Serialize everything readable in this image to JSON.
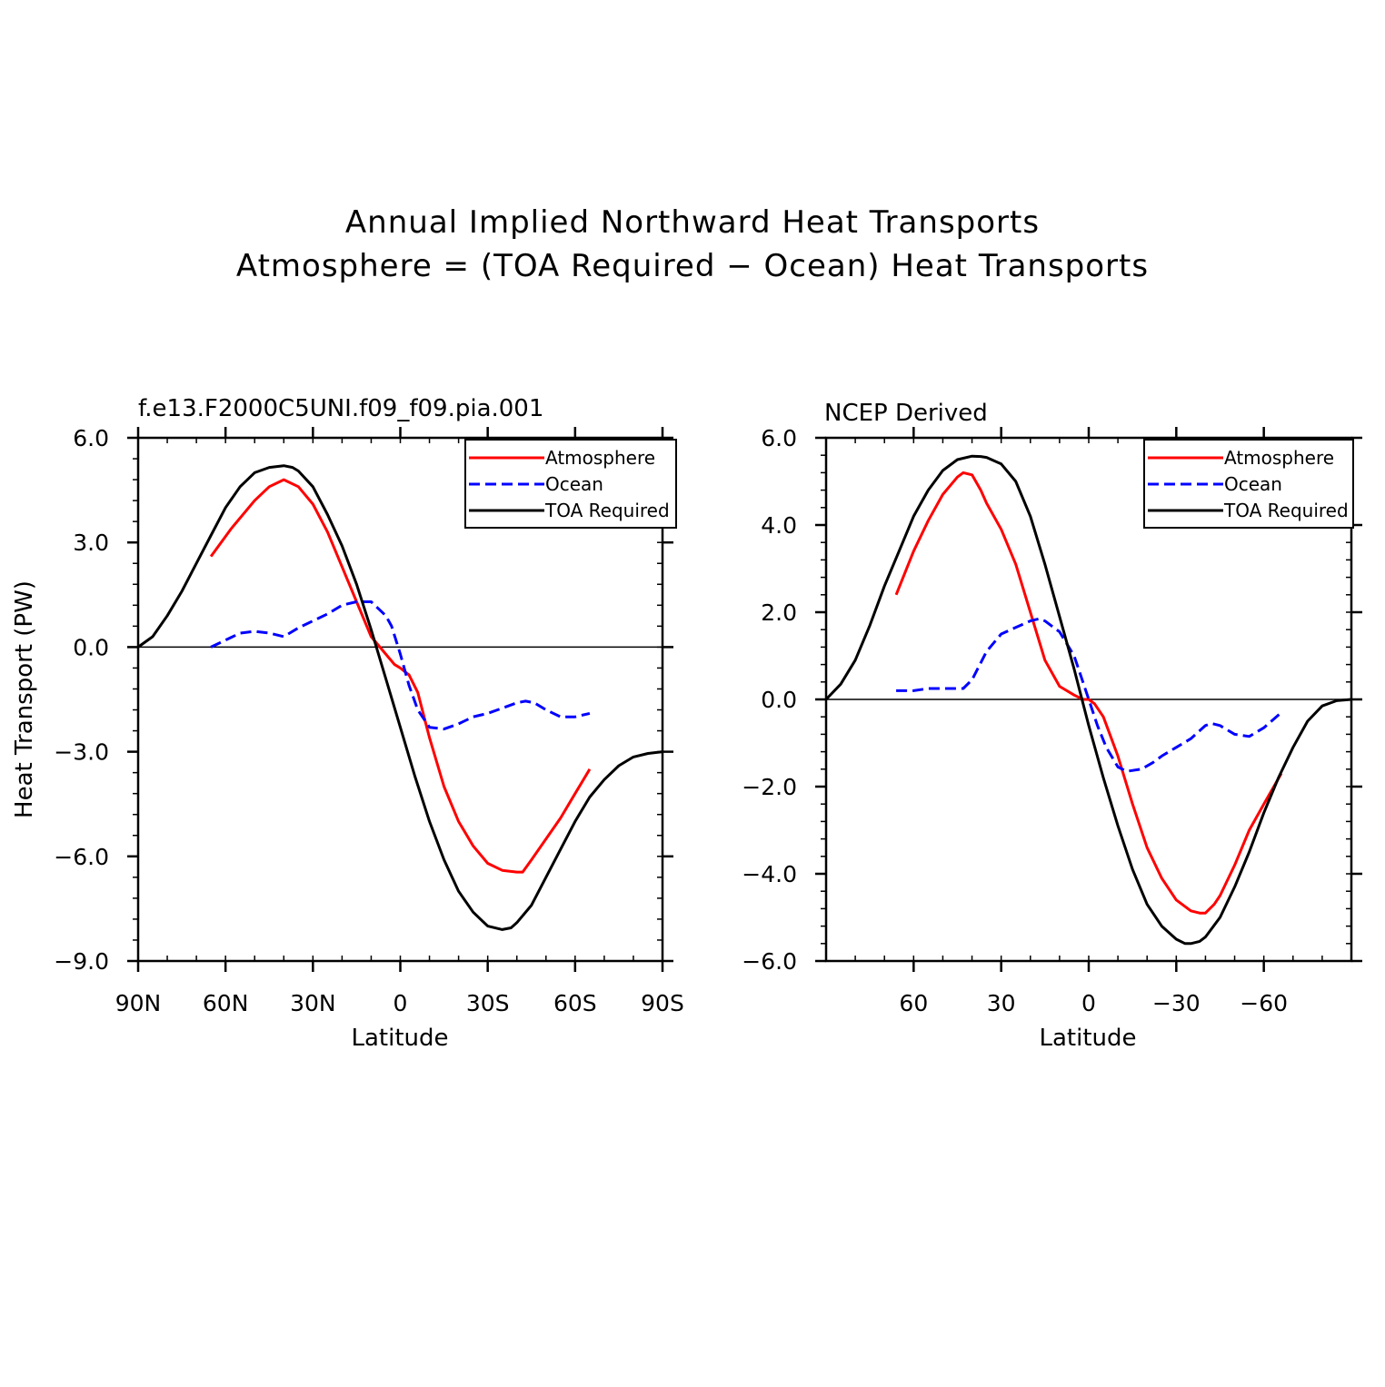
{
  "figure": {
    "title_line1": "Annual Implied Northward Heat Transports",
    "title_line2": "Atmosphere = (TOA Required − Ocean) Heat Transports"
  },
  "chart_data": [
    {
      "type": "line",
      "title": "f.e13.F2000C5UNI.f09_f09.pia.001",
      "xlabel": "Latitude",
      "ylabel": "Heat Transport (PW)",
      "xlim": [
        90,
        -90
      ],
      "ylim": [
        -9,
        6
      ],
      "xticks": [
        90,
        60,
        30,
        0,
        -30,
        -60,
        -90
      ],
      "xtick_labels": [
        "90N",
        "60N",
        "30N",
        "0",
        "30S",
        "60S",
        "90S"
      ],
      "yticks": [
        6,
        3,
        0,
        -3,
        -6,
        -9
      ],
      "ytick_labels": [
        "6.0",
        "3.0",
        "0.0",
        "−3.0",
        "−6.0",
        "−9.0"
      ],
      "legend_position": "top-right",
      "series": [
        {
          "name": "Atmosphere",
          "color": "#ff0000",
          "dash": "solid",
          "x": [
            65,
            58,
            50,
            45,
            40,
            35,
            30,
            25,
            20,
            15,
            10,
            5,
            2,
            0,
            -3,
            -6,
            -10,
            -15,
            -20,
            -25,
            -30,
            -35,
            -40,
            -42,
            -45,
            -50,
            -55,
            -60,
            -65
          ],
          "y": [
            2.6,
            3.4,
            4.2,
            4.6,
            4.8,
            4.6,
            4.1,
            3.3,
            2.3,
            1.3,
            0.3,
            -0.2,
            -0.5,
            -0.6,
            -0.8,
            -1.3,
            -2.6,
            -4.0,
            -5.0,
            -5.7,
            -6.2,
            -6.4,
            -6.45,
            -6.45,
            -6.1,
            -5.5,
            -4.9,
            -4.2,
            -3.5
          ]
        },
        {
          "name": "Ocean",
          "color": "#0000ff",
          "dash": "dashed",
          "x": [
            65,
            60,
            55,
            50,
            45,
            40,
            35,
            30,
            25,
            20,
            15,
            10,
            5,
            3,
            0,
            -3,
            -6,
            -10,
            -15,
            -20,
            -25,
            -30,
            -35,
            -40,
            -43,
            -46,
            -50,
            -55,
            -60,
            -65
          ],
          "y": [
            0.0,
            0.2,
            0.4,
            0.45,
            0.4,
            0.3,
            0.55,
            0.75,
            0.95,
            1.2,
            1.3,
            1.3,
            0.9,
            0.6,
            -0.2,
            -1.1,
            -1.8,
            -2.3,
            -2.35,
            -2.2,
            -2.0,
            -1.9,
            -1.75,
            -1.6,
            -1.55,
            -1.6,
            -1.8,
            -2.0,
            -2.0,
            -1.9
          ]
        },
        {
          "name": "TOA Required",
          "color": "#000000",
          "dash": "solid",
          "x": [
            90,
            85,
            80,
            75,
            70,
            65,
            60,
            55,
            50,
            45,
            40,
            37,
            35,
            30,
            25,
            20,
            15,
            10,
            5,
            0,
            -5,
            -10,
            -15,
            -20,
            -25,
            -30,
            -35,
            -38,
            -40,
            -45,
            -50,
            -55,
            -60,
            -65,
            -70,
            -75,
            -80,
            -85,
            -90
          ],
          "y": [
            0.0,
            0.3,
            0.9,
            1.6,
            2.4,
            3.2,
            4.0,
            4.6,
            5.0,
            5.15,
            5.2,
            5.15,
            5.05,
            4.6,
            3.8,
            2.9,
            1.8,
            0.5,
            -0.9,
            -2.3,
            -3.7,
            -5.0,
            -6.1,
            -7.0,
            -7.6,
            -8.0,
            -8.1,
            -8.05,
            -7.9,
            -7.4,
            -6.6,
            -5.8,
            -5.0,
            -4.3,
            -3.8,
            -3.4,
            -3.15,
            -3.05,
            -3.0
          ]
        }
      ]
    },
    {
      "type": "line",
      "title": "NCEP Derived",
      "xlabel": "Latitude",
      "ylabel": "",
      "xlim": [
        90,
        -90
      ],
      "ylim": [
        -6,
        6
      ],
      "xticks": [
        60,
        30,
        0,
        -30,
        -60
      ],
      "xtick_labels": [
        "60",
        "30",
        "0",
        "−30",
        "−60"
      ],
      "yticks": [
        6,
        4,
        2,
        0,
        -2,
        -4,
        -6
      ],
      "ytick_labels": [
        "6.0",
        "4.0",
        "2.0",
        "0.0",
        "−2.0",
        "−4.0",
        "−6.0"
      ],
      "legend_position": "top-right",
      "series": [
        {
          "name": "Atmosphere",
          "color": "#ff0000",
          "dash": "solid",
          "x": [
            66,
            60,
            55,
            50,
            45,
            43,
            40,
            37,
            35,
            30,
            25,
            20,
            15,
            10,
            5,
            2,
            0,
            -2,
            -5,
            -10,
            -15,
            -20,
            -25,
            -30,
            -35,
            -38,
            -40,
            -43,
            -45,
            -50,
            -55,
            -60,
            -66
          ],
          "y": [
            2.4,
            3.4,
            4.1,
            4.7,
            5.1,
            5.2,
            5.15,
            4.8,
            4.5,
            3.9,
            3.1,
            2.0,
            0.9,
            0.3,
            0.1,
            0.0,
            0.0,
            -0.1,
            -0.4,
            -1.3,
            -2.4,
            -3.4,
            -4.1,
            -4.6,
            -4.85,
            -4.9,
            -4.9,
            -4.7,
            -4.5,
            -3.8,
            -3.0,
            -2.4,
            -1.7
          ]
        },
        {
          "name": "Ocean",
          "color": "#0000ff",
          "dash": "dashed",
          "x": [
            66,
            60,
            55,
            50,
            45,
            43,
            40,
            35,
            30,
            25,
            20,
            17,
            15,
            10,
            5,
            2,
            0,
            -3,
            -6,
            -10,
            -13,
            -18,
            -22,
            -25,
            -30,
            -35,
            -40,
            -42,
            -45,
            -50,
            -55,
            -60,
            -66
          ],
          "y": [
            0.2,
            0.2,
            0.25,
            0.25,
            0.25,
            0.25,
            0.45,
            1.1,
            1.5,
            1.65,
            1.8,
            1.85,
            1.8,
            1.55,
            1.0,
            0.4,
            0.0,
            -0.6,
            -1.1,
            -1.55,
            -1.65,
            -1.6,
            -1.45,
            -1.3,
            -1.1,
            -0.9,
            -0.6,
            -0.55,
            -0.6,
            -0.8,
            -0.85,
            -0.65,
            -0.3
          ]
        },
        {
          "name": "TOA Required",
          "color": "#000000",
          "dash": "solid",
          "x": [
            90,
            85,
            80,
            75,
            70,
            65,
            60,
            55,
            50,
            45,
            40,
            37,
            35,
            30,
            25,
            20,
            15,
            10,
            5,
            0,
            -5,
            -10,
            -15,
            -20,
            -25,
            -30,
            -33,
            -35,
            -38,
            -40,
            -45,
            -50,
            -55,
            -60,
            -65,
            -70,
            -75,
            -80,
            -85,
            -90
          ],
          "y": [
            0.0,
            0.35,
            0.9,
            1.7,
            2.6,
            3.4,
            4.2,
            4.8,
            5.25,
            5.5,
            5.58,
            5.57,
            5.55,
            5.4,
            5.0,
            4.2,
            3.1,
            1.9,
            0.7,
            -0.6,
            -1.8,
            -2.9,
            -3.9,
            -4.7,
            -5.2,
            -5.5,
            -5.6,
            -5.6,
            -5.55,
            -5.45,
            -5.0,
            -4.3,
            -3.5,
            -2.6,
            -1.8,
            -1.1,
            -0.5,
            -0.15,
            -0.03,
            0.0
          ]
        }
      ]
    }
  ]
}
